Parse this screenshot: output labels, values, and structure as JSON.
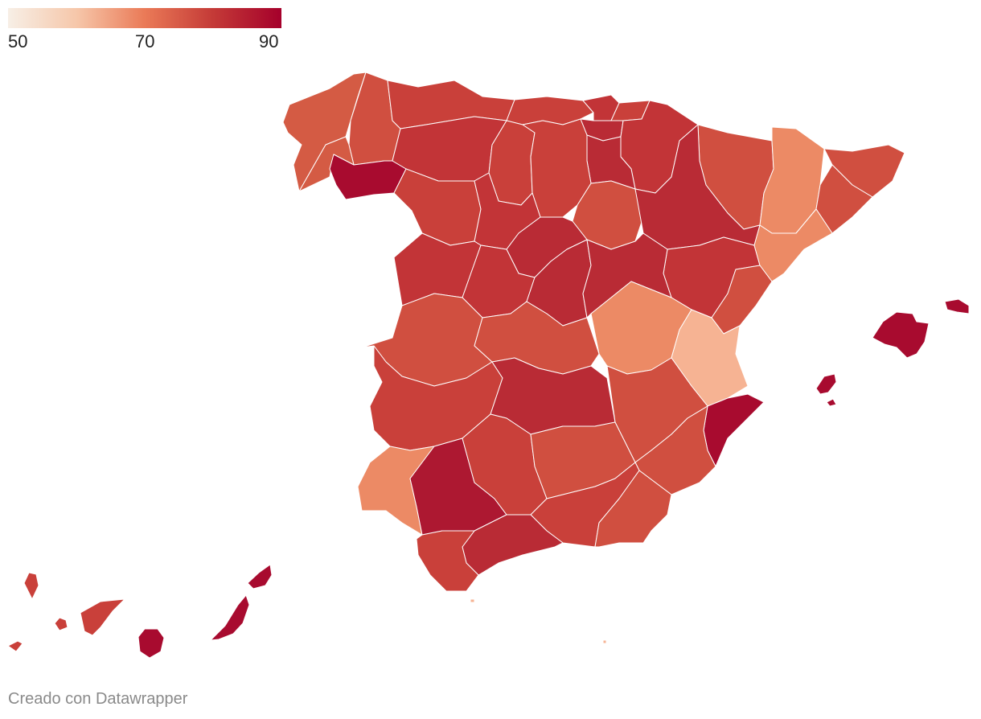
{
  "legend": {
    "ticks": [
      "50",
      "70",
      "90"
    ],
    "min": 50,
    "max": 90,
    "colors": [
      "#f7efe6",
      "#f6b393",
      "#ea7a57",
      "#c43a37",
      "#a5002b"
    ]
  },
  "credit": "Creado con Datawrapper",
  "map": {
    "value_colors": {
      "62": "#f6b393",
      "66": "#ec8a65",
      "72": "#d45b44",
      "74": "#d04f40",
      "76": "#c9403a",
      "78": "#c23437",
      "80": "#b92b35",
      "83": "#ad1831",
      "86": "#a80b2f"
    }
  }
}
